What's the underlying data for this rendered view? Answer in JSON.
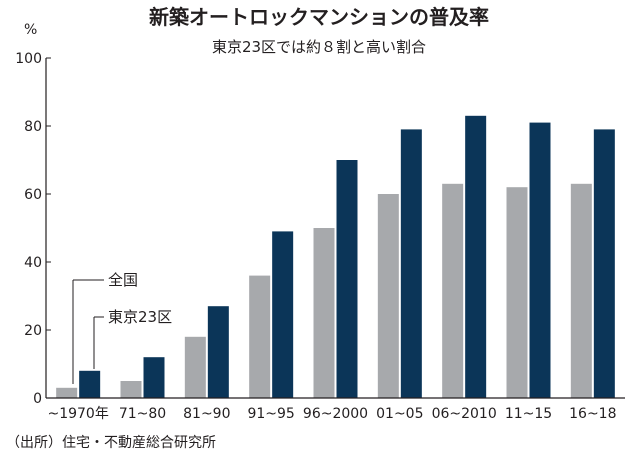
{
  "chart_data": {
    "type": "bar",
    "title": "新築オートロックマンションの普及率",
    "subtitle": "東京23区では約８割と高い割合",
    "unit": "%",
    "categories": [
      "~1970年",
      "71~80",
      "81~90",
      "91~95",
      "96~2000",
      "01~05",
      "06~2010",
      "11~15",
      "16~18"
    ],
    "series": [
      {
        "name": "全国",
        "color": "#a7a9ac",
        "values": [
          3,
          5,
          18,
          36,
          50,
          60,
          63,
          62,
          63
        ]
      },
      {
        "name": "東京23区",
        "color": "#0b3558",
        "values": [
          8,
          12,
          27,
          49,
          70,
          79,
          83,
          81,
          79
        ]
      }
    ],
    "ylim": [
      0,
      100
    ],
    "yticks": [
      0,
      20,
      40,
      60,
      80,
      100
    ],
    "grid": false,
    "legend_placement": "inside-left, leader lines to first group",
    "source": "（出所）住宅・不動産総合研究所"
  }
}
